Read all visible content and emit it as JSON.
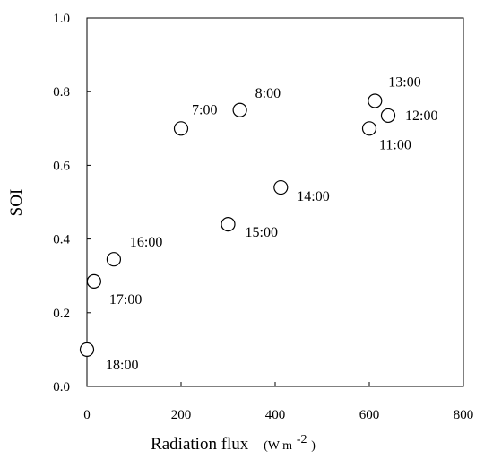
{
  "chart_data": {
    "type": "scatter",
    "title": "",
    "xlabel": "Radiation flux",
    "xlabel_unit": {
      "base": "(W m",
      "sup": "-2",
      "close": ")"
    },
    "ylabel": "SOI",
    "xlim": [
      0,
      800
    ],
    "ylim": [
      0,
      1.0
    ],
    "xticks": [
      "0",
      "200",
      "400",
      "600",
      "800"
    ],
    "yticks": [
      "0.0",
      "0.2",
      "0.4",
      "0.6",
      "0.8",
      "1.0"
    ],
    "grid": false,
    "legend": "none",
    "marker": "open-circle",
    "points": [
      {
        "x": 200,
        "y": 0.7,
        "label": "7:00"
      },
      {
        "x": 325,
        "y": 0.75,
        "label": "8:00"
      },
      {
        "x": 600,
        "y": 0.7,
        "label": "11:00"
      },
      {
        "x": 640,
        "y": 0.735,
        "label": "12:00"
      },
      {
        "x": 612,
        "y": 0.775,
        "label": "13:00"
      },
      {
        "x": 412,
        "y": 0.54,
        "label": "14:00"
      },
      {
        "x": 300,
        "y": 0.44,
        "label": "15:00"
      },
      {
        "x": 57,
        "y": 0.345,
        "label": "16:00"
      },
      {
        "x": 15,
        "y": 0.285,
        "label": "17:00"
      },
      {
        "x": 0,
        "y": 0.1,
        "label": "18:00"
      }
    ]
  }
}
